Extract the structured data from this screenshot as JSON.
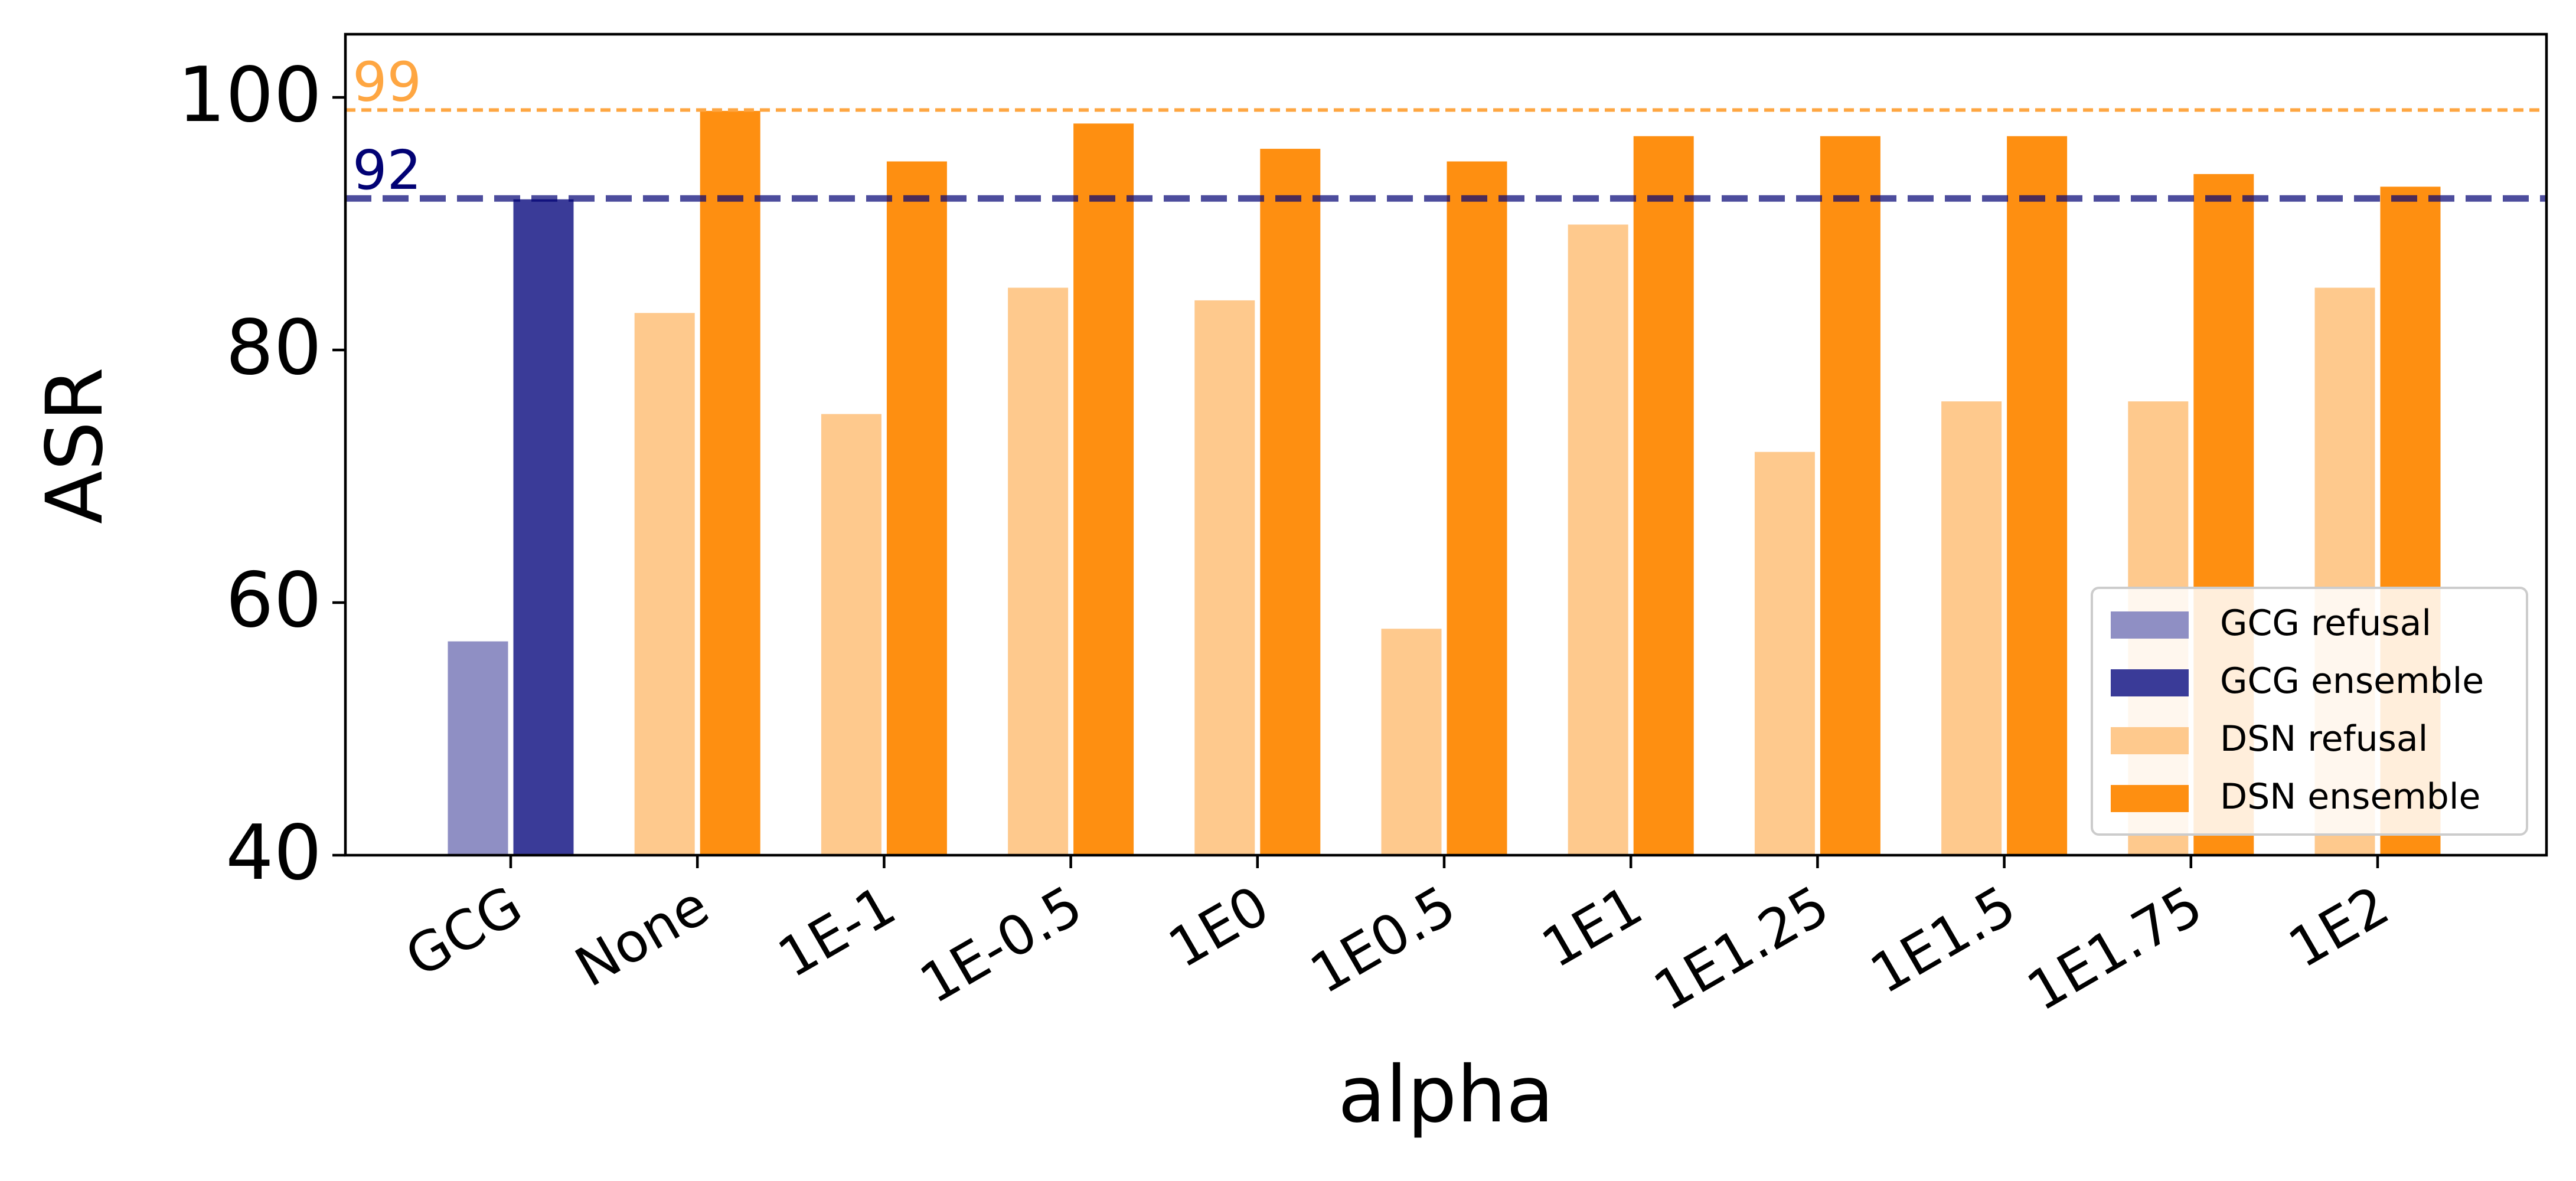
{
  "chart_data": {
    "type": "bar",
    "title": "",
    "xlabel": "alpha",
    "ylabel": "ASR",
    "ylim": [
      40,
      105
    ],
    "yticks": [
      40,
      60,
      80,
      100
    ],
    "categories": [
      "GCG",
      "None",
      "1E-1",
      "1E-0.5",
      "1E0",
      "1E0.5",
      "1E1",
      "1E1.25",
      "1E1.5",
      "1E1.75",
      "1E2"
    ],
    "series": [
      {
        "name": "GCG refusal",
        "color": "#8f8fc4",
        "values": [
          57,
          null,
          null,
          null,
          null,
          null,
          null,
          null,
          null,
          null,
          null
        ]
      },
      {
        "name": "GCG ensemble",
        "color": "#3a3b98",
        "values": [
          92,
          null,
          null,
          null,
          null,
          null,
          null,
          null,
          null,
          null,
          null
        ]
      },
      {
        "name": "DSN refusal",
        "color": "#fec98d",
        "values": [
          null,
          83,
          75,
          85,
          84,
          58,
          90,
          72,
          76,
          76,
          85
        ]
      },
      {
        "name": "DSN ensemble",
        "color": "#fe8f11",
        "values": [
          null,
          99,
          95,
          98,
          96,
          95,
          97,
          97,
          97,
          94,
          93
        ]
      }
    ],
    "reference_lines": [
      {
        "value": 99,
        "label": "99",
        "color": "#fea642",
        "style": "dashed-thin"
      },
      {
        "value": 92,
        "label": "92",
        "color": "#020274",
        "style": "dashed-thick"
      }
    ],
    "legend_position": "lower-right",
    "grid": false
  }
}
